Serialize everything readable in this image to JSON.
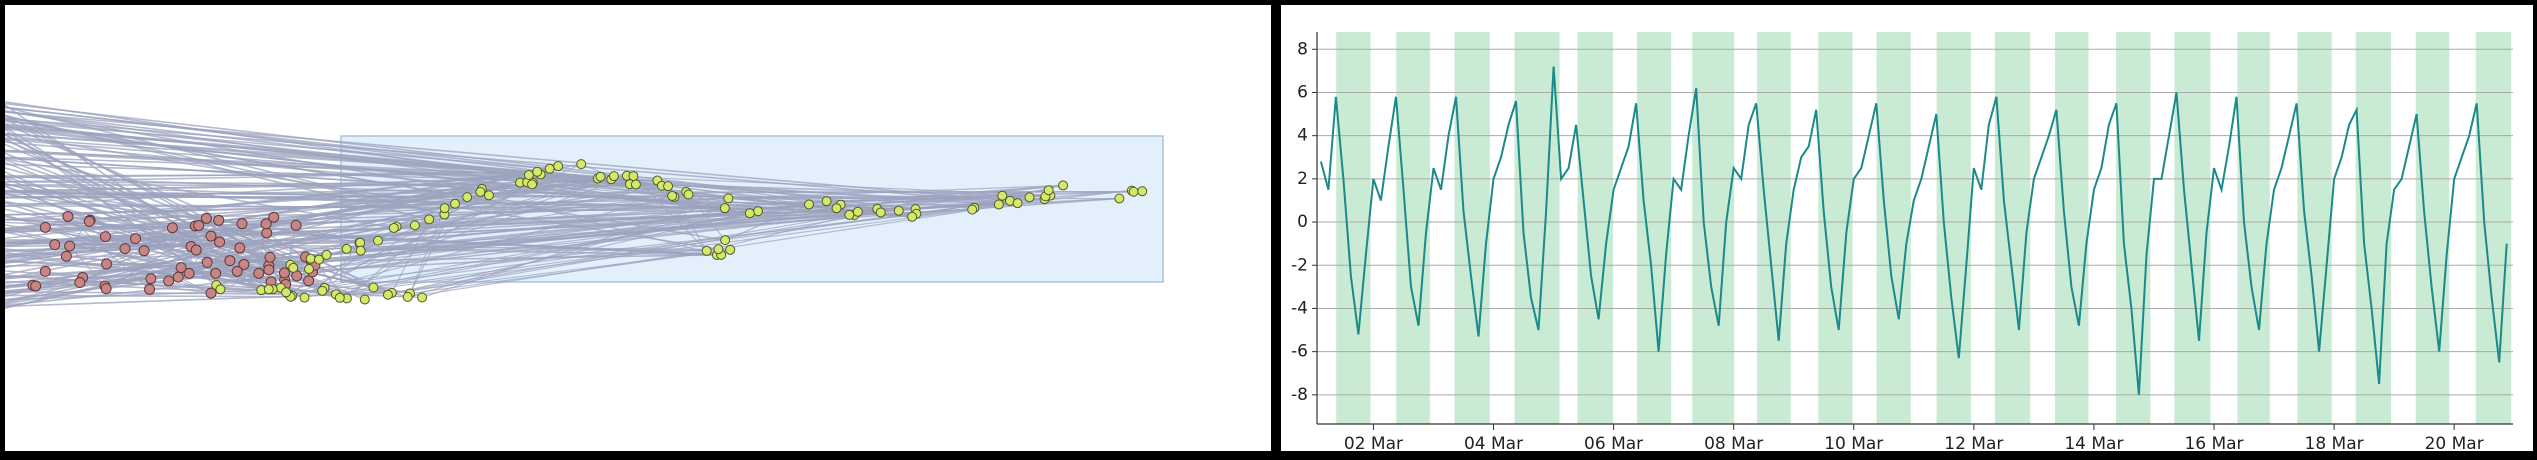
{
  "chart_data": {
    "type": "line",
    "xlim": [
      1.06,
      20.98
    ],
    "xticks": [
      {
        "value": 2,
        "label": "02 Mar"
      },
      {
        "value": 4,
        "label": "04 Mar"
      },
      {
        "value": 6,
        "label": "06 Mar"
      },
      {
        "value": 8,
        "label": "08 Mar"
      },
      {
        "value": 10,
        "label": "10 Mar"
      },
      {
        "value": 12,
        "label": "12 Mar"
      },
      {
        "value": 14,
        "label": "14 Mar"
      },
      {
        "value": 16,
        "label": "16 Mar"
      },
      {
        "value": 18,
        "label": "18 Mar"
      },
      {
        "value": 20,
        "label": "20 Mar"
      }
    ],
    "ylim": [
      -9.35,
      8.8
    ],
    "yticks": [
      -8,
      -6,
      -4,
      -2,
      0,
      2,
      4,
      6,
      8
    ],
    "grid": true,
    "color": "#1a8a8a",
    "band_color": "#c9ead3",
    "bands": [
      [
        1.38,
        1.95
      ],
      [
        2.38,
        2.94
      ],
      [
        3.35,
        3.94
      ],
      [
        4.35,
        5.1
      ],
      [
        5.4,
        5.99
      ],
      [
        6.39,
        6.96
      ],
      [
        7.31,
        8.01
      ],
      [
        8.39,
        8.95
      ],
      [
        9.41,
        9.98
      ],
      [
        10.38,
        10.95
      ],
      [
        11.38,
        11.95
      ],
      [
        12.35,
        12.94
      ],
      [
        13.35,
        13.91
      ],
      [
        14.37,
        14.94
      ],
      [
        15.34,
        15.94
      ],
      [
        16.39,
        16.93
      ],
      [
        17.39,
        17.96
      ],
      [
        18.36,
        18.95
      ],
      [
        19.36,
        19.92
      ],
      [
        20.36,
        20.95
      ]
    ],
    "x": [
      1.125,
      1.25,
      1.375,
      1.5,
      1.625,
      1.75,
      1.875,
      2,
      2.125,
      2.25,
      2.375,
      2.5,
      2.625,
      2.75,
      2.875,
      3,
      3.125,
      3.25,
      3.375,
      3.5,
      3.625,
      3.75,
      3.875,
      4,
      4.125,
      4.25,
      4.375,
      4.5,
      4.625,
      4.75,
      4.875,
      5,
      5.125,
      5.25,
      5.375,
      5.5,
      5.625,
      5.75,
      5.875,
      6,
      6.125,
      6.25,
      6.375,
      6.5,
      6.625,
      6.75,
      6.875,
      7,
      7.125,
      7.25,
      7.375,
      7.5,
      7.625,
      7.75,
      7.875,
      8,
      8.125,
      8.25,
      8.375,
      8.5,
      8.625,
      8.75,
      8.875,
      9,
      9.125,
      9.25,
      9.375,
      9.5,
      9.625,
      9.75,
      9.875,
      10,
      10.125,
      10.25,
      10.375,
      10.5,
      10.625,
      10.75,
      10.875,
      11,
      11.125,
      11.25,
      11.375,
      11.5,
      11.625,
      11.75,
      11.875,
      12,
      12.125,
      12.25,
      12.375,
      12.5,
      12.625,
      12.75,
      12.875,
      13,
      13.125,
      13.25,
      13.375,
      13.5,
      13.625,
      13.75,
      13.875,
      14,
      14.125,
      14.25,
      14.375,
      14.5,
      14.625,
      14.75,
      14.875,
      15,
      15.125,
      15.25,
      15.375,
      15.5,
      15.625,
      15.75,
      15.875,
      16,
      16.125,
      16.25,
      16.375,
      16.5,
      16.625,
      16.75,
      16.875,
      17,
      17.125,
      17.25,
      17.375,
      17.5,
      17.625,
      17.75,
      17.875,
      18,
      18.125,
      18.25,
      18.375,
      18.5,
      18.625,
      18.75,
      18.875,
      19,
      19.125,
      19.25,
      19.375,
      19.5,
      19.625,
      19.75,
      19.875,
      20,
      20.125,
      20.25,
      20.375,
      20.5,
      20.625,
      20.75,
      20.875
    ],
    "values": [
      2.8,
      1.5,
      5.8,
      2,
      -2.5,
      -5.2,
      -1.5,
      2,
      1,
      3.5,
      5.8,
      1.5,
      -3,
      -4.8,
      -0.5,
      2.5,
      1.5,
      4,
      5.8,
      0.5,
      -2.5,
      -5.3,
      -1,
      2,
      3,
      4.5,
      5.6,
      -0.5,
      -3.5,
      -5,
      0.5,
      7.2,
      2,
      2.5,
      4.5,
      1,
      -2.5,
      -4.5,
      -1,
      1.5,
      2.5,
      3.5,
      5.5,
      1,
      -2,
      -6,
      -1.5,
      2,
      1.5,
      4,
      6.2,
      0,
      -3,
      -4.8,
      0,
      2.5,
      2,
      4.5,
      5.5,
      1.5,
      -2,
      -5.5,
      -1,
      1.5,
      3,
      3.5,
      5.2,
      0.5,
      -3,
      -5,
      -0.5,
      2,
      2.5,
      4,
      5.5,
      1,
      -2.5,
      -4.5,
      -1,
      1,
      2,
      3.5,
      5,
      0,
      -3.5,
      -6.3,
      -2,
      2.5,
      1.5,
      4.5,
      5.8,
      1,
      -2,
      -5,
      -0.5,
      2,
      3,
      4,
      5.2,
      0.5,
      -3,
      -4.8,
      -1,
      1.5,
      2.5,
      4.5,
      5.5,
      -1,
      -4,
      -8,
      -1.5,
      2,
      2,
      4,
      6,
      1.5,
      -2,
      -5.5,
      -0.5,
      2.5,
      1.5,
      3.5,
      5.8,
      0,
      -3,
      -5,
      -1,
      1.5,
      2.5,
      4,
      5.5,
      0.5,
      -2.5,
      -6,
      -2,
      2,
      3,
      4.5,
      5.2,
      -1,
      -4,
      -7.5,
      -1,
      1.5,
      2,
      3.5,
      5,
      0.5,
      -3,
      -6,
      -1.5,
      2,
      3,
      4,
      5.5,
      0,
      -3.5,
      -6.5,
      -1
    ]
  }
}
